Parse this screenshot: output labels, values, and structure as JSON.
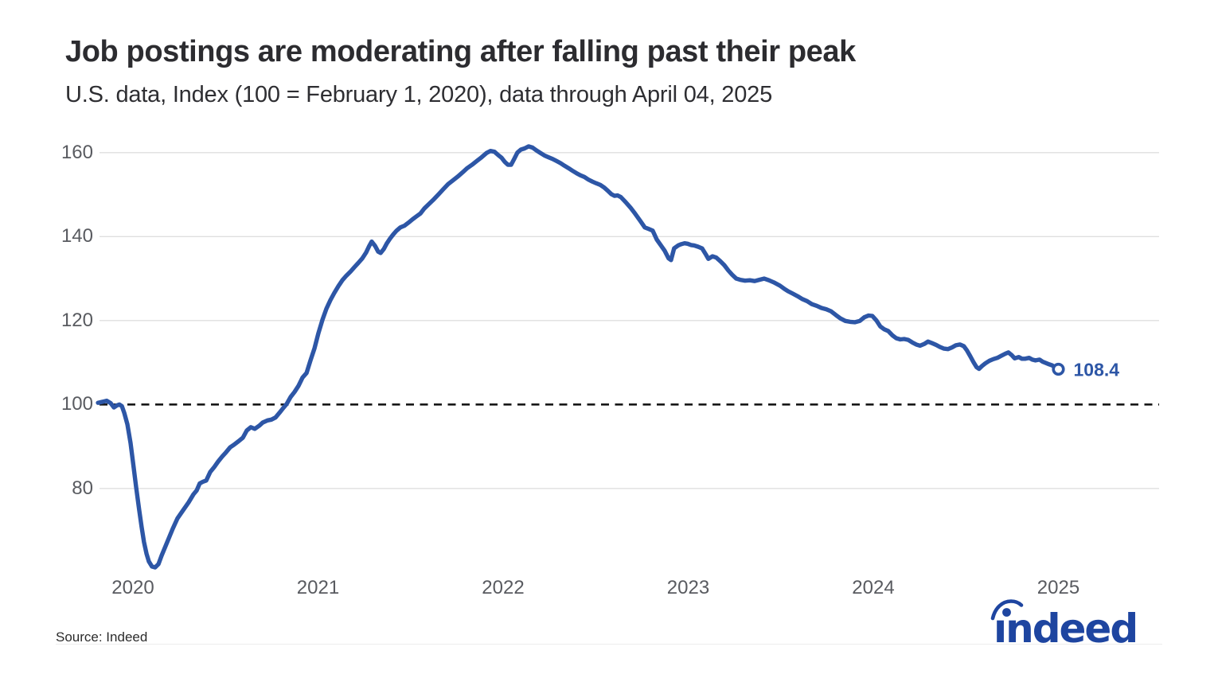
{
  "header": {
    "title": "Job postings are moderating after falling past their peak",
    "subtitle": "U.S. data, Index (100 = February 1, 2020), data through April 04, 2025"
  },
  "footer": {
    "source": "Source: Indeed",
    "logo_text": "ındeed"
  },
  "colors": {
    "line": "#2d56a6",
    "marker_fill": "#ffffff",
    "value_label": "#2d56a6",
    "logo": "#1e45a0",
    "grid": "#dfdfdf",
    "baseline": "#171717",
    "tick_text": "#595b60"
  },
  "chart_data": {
    "type": "line",
    "title": "Job postings are moderating after falling past their peak",
    "subtitle": "U.S. data, Index (100 = February 1, 2020), data through April 04, 2025",
    "x_unit": "decimal_year",
    "xlim": [
      2020.07,
      2025.8
    ],
    "ylim": [
      60,
      165
    ],
    "grid": "horizontal",
    "legend": "none",
    "y_ticks": [
      160,
      140,
      120,
      100,
      80
    ],
    "baseline_value": 100,
    "x_ticks": [
      {
        "label": "2020",
        "t": 2020.26
      },
      {
        "label": "2021",
        "t": 2021.26
      },
      {
        "label": "2022",
        "t": 2022.26
      },
      {
        "label": "2023",
        "t": 2023.26
      },
      {
        "label": "2024",
        "t": 2024.26
      },
      {
        "label": "2025",
        "t": 2025.26
      }
    ],
    "end_label": {
      "text": "108.4",
      "value": 108.4,
      "t": 2025.26
    },
    "series": [
      {
        "name": "U.S. job postings index (100 = Feb 1, 2020)",
        "color": "#2d56a6",
        "points": [
          [
            2020.071,
            100.4
          ],
          [
            2020.101,
            100.7
          ],
          [
            2020.118,
            100.9
          ],
          [
            2020.14,
            100.3
          ],
          [
            2020.157,
            99.3
          ],
          [
            2020.174,
            99.8
          ],
          [
            2020.187,
            100.0
          ],
          [
            2020.2,
            99.6
          ],
          [
            2020.213,
            98.0
          ],
          [
            2020.23,
            95.3
          ],
          [
            2020.247,
            90.8
          ],
          [
            2020.264,
            85.0
          ],
          [
            2020.277,
            80.3
          ],
          [
            2020.294,
            74.8
          ],
          [
            2020.307,
            70.8
          ],
          [
            2020.32,
            67.2
          ],
          [
            2020.333,
            64.5
          ],
          [
            2020.346,
            62.6
          ],
          [
            2020.363,
            61.4
          ],
          [
            2020.38,
            61.2
          ],
          [
            2020.398,
            62.0
          ],
          [
            2020.415,
            64.0
          ],
          [
            2020.445,
            67.2
          ],
          [
            2020.475,
            70.4
          ],
          [
            2020.501,
            72.9
          ],
          [
            2020.531,
            74.8
          ],
          [
            2020.561,
            76.7
          ],
          [
            2020.587,
            78.6
          ],
          [
            2020.604,
            79.5
          ],
          [
            2020.621,
            81.2
          ],
          [
            2020.638,
            81.6
          ],
          [
            2020.656,
            81.9
          ],
          [
            2020.677,
            83.9
          ],
          [
            2020.699,
            85.1
          ],
          [
            2020.72,
            86.4
          ],
          [
            2020.742,
            87.6
          ],
          [
            2020.763,
            88.6
          ],
          [
            2020.785,
            89.8
          ],
          [
            2020.806,
            90.4
          ],
          [
            2020.832,
            91.3
          ],
          [
            2020.854,
            92.1
          ],
          [
            2020.875,
            93.8
          ],
          [
            2020.897,
            94.6
          ],
          [
            2020.918,
            94.2
          ],
          [
            2020.944,
            95.0
          ],
          [
            2020.961,
            95.7
          ],
          [
            2020.987,
            96.2
          ],
          [
            2021.008,
            96.4
          ],
          [
            2021.03,
            96.9
          ],
          [
            2021.051,
            98.0
          ],
          [
            2021.073,
            99.2
          ],
          [
            2021.09,
            100.1
          ],
          [
            2021.112,
            101.8
          ],
          [
            2021.133,
            103.0
          ],
          [
            2021.155,
            104.5
          ],
          [
            2021.176,
            106.4
          ],
          [
            2021.198,
            107.5
          ],
          [
            2021.219,
            110.5
          ],
          [
            2021.241,
            113.4
          ],
          [
            2021.262,
            117.0
          ],
          [
            2021.284,
            120.2
          ],
          [
            2021.305,
            122.8
          ],
          [
            2021.327,
            124.9
          ],
          [
            2021.348,
            126.6
          ],
          [
            2021.37,
            128.2
          ],
          [
            2021.391,
            129.6
          ],
          [
            2021.413,
            130.7
          ],
          [
            2021.434,
            131.6
          ],
          [
            2021.456,
            132.7
          ],
          [
            2021.477,
            133.7
          ],
          [
            2021.499,
            134.8
          ],
          [
            2021.52,
            136.2
          ],
          [
            2021.537,
            137.8
          ],
          [
            2021.55,
            138.8
          ],
          [
            2021.568,
            137.8
          ],
          [
            2021.585,
            136.4
          ],
          [
            2021.598,
            136.1
          ],
          [
            2021.615,
            137.0
          ],
          [
            2021.632,
            138.4
          ],
          [
            2021.649,
            139.5
          ],
          [
            2021.666,
            140.5
          ],
          [
            2021.684,
            141.4
          ],
          [
            2021.705,
            142.2
          ],
          [
            2021.727,
            142.6
          ],
          [
            2021.748,
            143.3
          ],
          [
            2021.77,
            144.1
          ],
          [
            2021.791,
            144.8
          ],
          [
            2021.813,
            145.5
          ],
          [
            2021.834,
            146.7
          ],
          [
            2021.86,
            147.8
          ],
          [
            2021.886,
            148.9
          ],
          [
            2021.912,
            150.1
          ],
          [
            2021.937,
            151.3
          ],
          [
            2021.963,
            152.5
          ],
          [
            2021.989,
            153.4
          ],
          [
            2022.015,
            154.3
          ],
          [
            2022.041,
            155.3
          ],
          [
            2022.066,
            156.3
          ],
          [
            2022.092,
            157.1
          ],
          [
            2022.118,
            158.0
          ],
          [
            2022.144,
            158.9
          ],
          [
            2022.17,
            159.9
          ],
          [
            2022.191,
            160.4
          ],
          [
            2022.213,
            160.2
          ],
          [
            2022.234,
            159.4
          ],
          [
            2022.251,
            158.8
          ],
          [
            2022.269,
            157.8
          ],
          [
            2022.286,
            157.1
          ],
          [
            2022.303,
            157.1
          ],
          [
            2022.32,
            158.5
          ],
          [
            2022.337,
            160.0
          ],
          [
            2022.355,
            160.7
          ],
          [
            2022.376,
            161.0
          ],
          [
            2022.398,
            161.5
          ],
          [
            2022.419,
            161.2
          ],
          [
            2022.441,
            160.5
          ],
          [
            2022.462,
            159.9
          ],
          [
            2022.484,
            159.3
          ],
          [
            2022.505,
            158.9
          ],
          [
            2022.527,
            158.5
          ],
          [
            2022.548,
            158.0
          ],
          [
            2022.57,
            157.5
          ],
          [
            2022.591,
            156.9
          ],
          [
            2022.613,
            156.3
          ],
          [
            2022.634,
            155.7
          ],
          [
            2022.656,
            155.1
          ],
          [
            2022.677,
            154.6
          ],
          [
            2022.699,
            154.2
          ],
          [
            2022.72,
            153.6
          ],
          [
            2022.742,
            153.1
          ],
          [
            2022.763,
            152.7
          ],
          [
            2022.785,
            152.3
          ],
          [
            2022.806,
            151.7
          ],
          [
            2022.828,
            150.8
          ],
          [
            2022.845,
            150.1
          ],
          [
            2022.862,
            149.7
          ],
          [
            2022.879,
            149.8
          ],
          [
            2022.896,
            149.4
          ],
          [
            2022.922,
            148.2
          ],
          [
            2022.948,
            146.9
          ],
          [
            2022.974,
            145.4
          ],
          [
            2023.0,
            143.8
          ],
          [
            2023.025,
            142.2
          ],
          [
            2023.047,
            141.8
          ],
          [
            2023.068,
            141.4
          ],
          [
            2023.09,
            139.3
          ],
          [
            2023.111,
            138.0
          ],
          [
            2023.133,
            136.6
          ],
          [
            2023.154,
            134.8
          ],
          [
            2023.167,
            134.4
          ],
          [
            2023.184,
            137.2
          ],
          [
            2023.206,
            137.9
          ],
          [
            2023.223,
            138.2
          ],
          [
            2023.24,
            138.4
          ],
          [
            2023.257,
            138.3
          ],
          [
            2023.275,
            138.0
          ],
          [
            2023.292,
            137.9
          ],
          [
            2023.313,
            137.6
          ],
          [
            2023.335,
            137.2
          ],
          [
            2023.356,
            135.7
          ],
          [
            2023.369,
            134.7
          ],
          [
            2023.391,
            135.3
          ],
          [
            2023.412,
            135.0
          ],
          [
            2023.434,
            134.1
          ],
          [
            2023.455,
            133.2
          ],
          [
            2023.477,
            131.9
          ],
          [
            2023.498,
            130.9
          ],
          [
            2023.52,
            130.0
          ],
          [
            2023.541,
            129.7
          ],
          [
            2023.567,
            129.5
          ],
          [
            2023.593,
            129.6
          ],
          [
            2023.619,
            129.4
          ],
          [
            2023.644,
            129.7
          ],
          [
            2023.67,
            130.0
          ],
          [
            2023.696,
            129.6
          ],
          [
            2023.722,
            129.1
          ],
          [
            2023.756,
            128.3
          ],
          [
            2023.778,
            127.6
          ],
          [
            2023.799,
            127.0
          ],
          [
            2023.825,
            126.4
          ],
          [
            2023.851,
            125.8
          ],
          [
            2023.877,
            125.1
          ],
          [
            2023.903,
            124.6
          ],
          [
            2023.928,
            123.9
          ],
          [
            2023.954,
            123.5
          ],
          [
            2023.98,
            123.0
          ],
          [
            2024.006,
            122.7
          ],
          [
            2024.032,
            122.2
          ],
          [
            2024.058,
            121.3
          ],
          [
            2024.083,
            120.5
          ],
          [
            2024.109,
            119.9
          ],
          [
            2024.135,
            119.7
          ],
          [
            2024.161,
            119.6
          ],
          [
            2024.187,
            119.9
          ],
          [
            2024.212,
            120.8
          ],
          [
            2024.234,
            121.2
          ],
          [
            2024.255,
            121.1
          ],
          [
            2024.277,
            120.0
          ],
          [
            2024.298,
            118.6
          ],
          [
            2024.32,
            117.9
          ],
          [
            2024.341,
            117.5
          ],
          [
            2024.363,
            116.5
          ],
          [
            2024.384,
            115.8
          ],
          [
            2024.406,
            115.5
          ],
          [
            2024.427,
            115.6
          ],
          [
            2024.449,
            115.4
          ],
          [
            2024.47,
            114.8
          ],
          [
            2024.492,
            114.3
          ],
          [
            2024.513,
            114.0
          ],
          [
            2024.535,
            114.4
          ],
          [
            2024.556,
            115.0
          ],
          [
            2024.578,
            114.6
          ],
          [
            2024.599,
            114.2
          ],
          [
            2024.62,
            113.7
          ],
          [
            2024.642,
            113.3
          ],
          [
            2024.663,
            113.2
          ],
          [
            2024.685,
            113.6
          ],
          [
            2024.706,
            114.1
          ],
          [
            2024.728,
            114.3
          ],
          [
            2024.749,
            113.9
          ],
          [
            2024.766,
            112.9
          ],
          [
            2024.784,
            111.5
          ],
          [
            2024.801,
            110.1
          ],
          [
            2024.818,
            108.9
          ],
          [
            2024.831,
            108.5
          ],
          [
            2024.848,
            109.2
          ],
          [
            2024.865,
            109.8
          ],
          [
            2024.887,
            110.4
          ],
          [
            2024.908,
            110.8
          ],
          [
            2024.93,
            111.1
          ],
          [
            2024.951,
            111.6
          ],
          [
            2024.973,
            112.1
          ],
          [
            2024.99,
            112.4
          ],
          [
            2025.007,
            111.8
          ],
          [
            2025.024,
            111.0
          ],
          [
            2025.046,
            111.3
          ],
          [
            2025.063,
            110.9
          ],
          [
            2025.08,
            110.9
          ],
          [
            2025.102,
            111.1
          ],
          [
            2025.119,
            110.7
          ],
          [
            2025.136,
            110.5
          ],
          [
            2025.158,
            110.7
          ],
          [
            2025.175,
            110.2
          ],
          [
            2025.192,
            109.9
          ],
          [
            2025.209,
            109.6
          ],
          [
            2025.227,
            109.3
          ],
          [
            2025.244,
            108.8
          ],
          [
            2025.26,
            108.4
          ]
        ]
      }
    ]
  }
}
